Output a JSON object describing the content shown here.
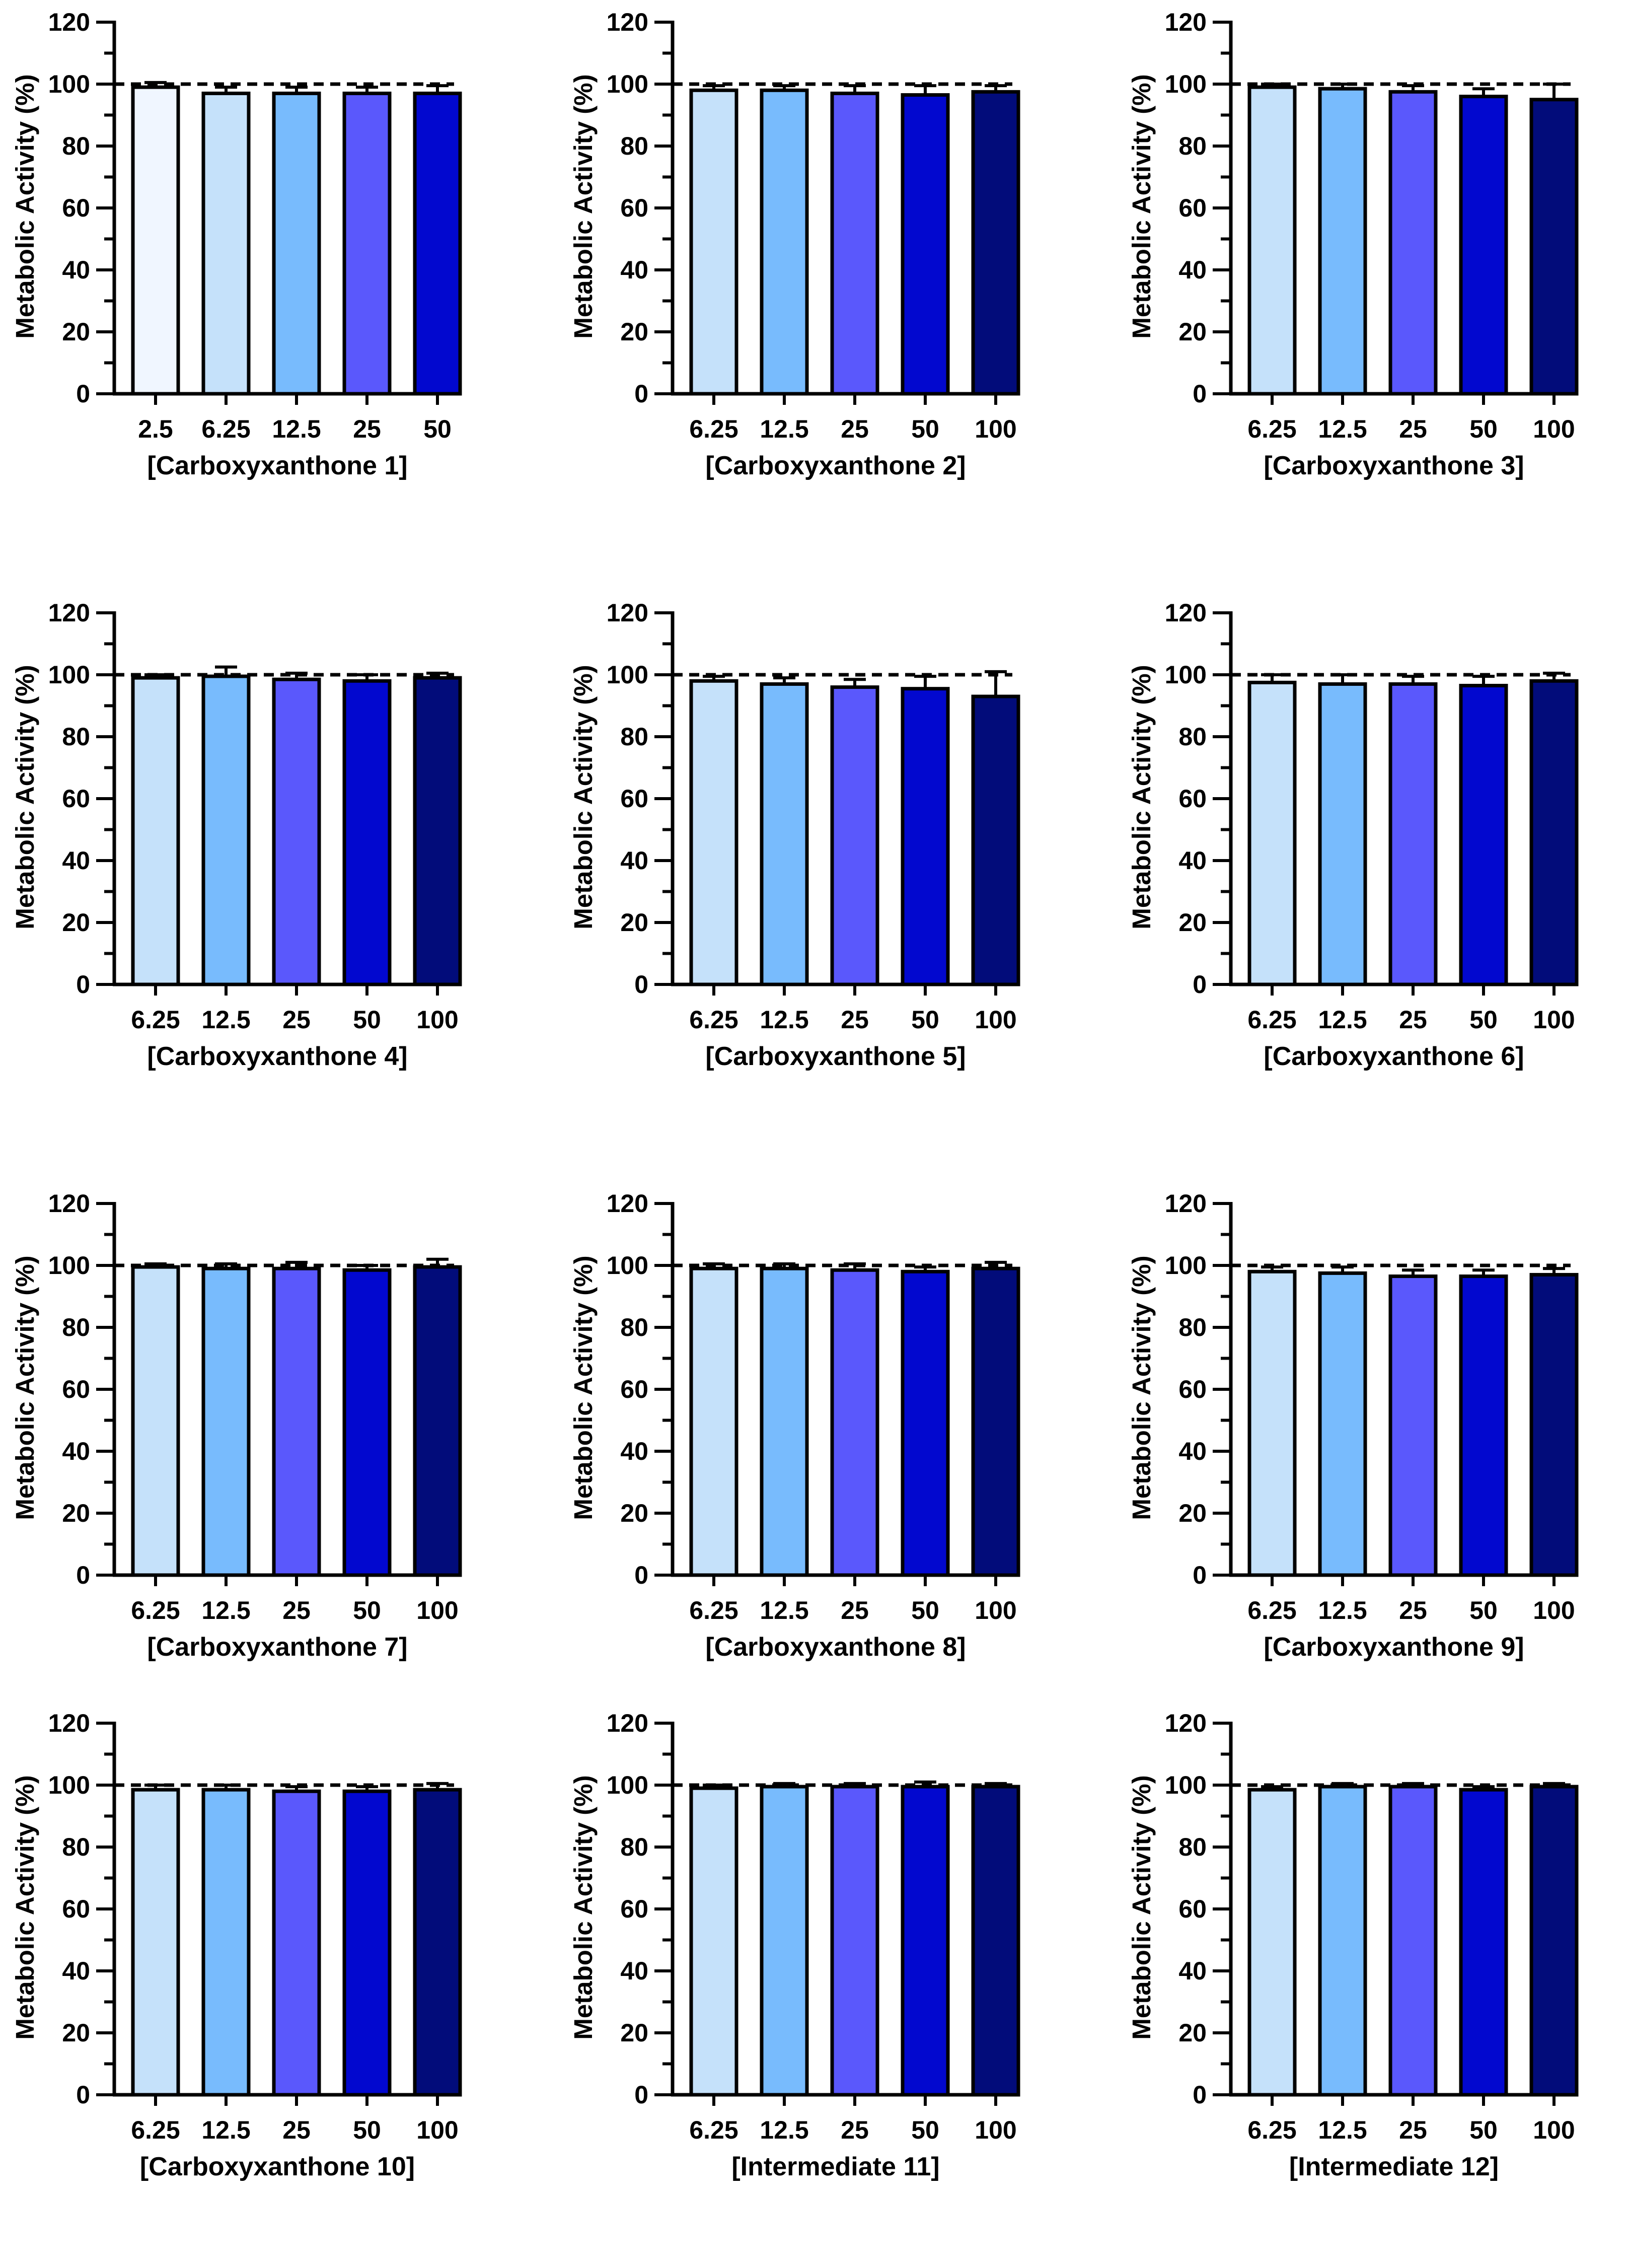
{
  "colors": [
    "#f0f6ff",
    "#c5e1fa",
    "#78bbfd",
    "#5a58fc",
    "#0208cf",
    "#020c7a"
  ],
  "panels": [
    {
      "chart_data": {
        "type": "bar",
        "title": "",
        "xlabel": "[Carboxyxanthone 1]",
        "ylabel": "Metabolic Activity (%)",
        "ylim": [
          0,
          120
        ],
        "yticks": [
          "0",
          "20",
          "40",
          "60",
          "80",
          "100",
          "120"
        ],
        "reference_line": 100,
        "categories": [
          "2.5",
          "6.25",
          "12.5",
          "25",
          "50"
        ],
        "values": [
          99,
          97,
          97,
          97,
          97
        ],
        "errors": [
          1.5,
          2,
          2,
          2,
          2.5
        ],
        "bar_colors": [
          "#f0f6ff",
          "#c5e1fa",
          "#78bbfd",
          "#5a58fc",
          "#0208cf"
        ]
      }
    },
    {
      "chart_data": {
        "type": "bar",
        "title": "",
        "xlabel": "[Carboxyxanthone 2]",
        "ylabel": "Metabolic Activity (%)",
        "ylim": [
          0,
          120
        ],
        "yticks": [
          "0",
          "20",
          "40",
          "60",
          "80",
          "100",
          "120"
        ],
        "reference_line": 100,
        "categories": [
          "6.25",
          "12.5",
          "25",
          "50",
          "100"
        ],
        "values": [
          98,
          98,
          97,
          96.5,
          97.5
        ],
        "errors": [
          1.5,
          1.5,
          2.5,
          3,
          2
        ],
        "bar_colors": [
          "#c5e1fa",
          "#78bbfd",
          "#5a58fc",
          "#0208cf",
          "#020c7a"
        ]
      }
    },
    {
      "chart_data": {
        "type": "bar",
        "title": "",
        "xlabel": "[Carboxyxanthone 3]",
        "ylabel": "Metabolic Activity (%)",
        "ylim": [
          0,
          120
        ],
        "yticks": [
          "0",
          "20",
          "40",
          "60",
          "80",
          "100",
          "120"
        ],
        "reference_line": 100,
        "categories": [
          "6.25",
          "12.5",
          "25",
          "50",
          "100"
        ],
        "values": [
          99,
          98.5,
          97.5,
          96,
          95
        ],
        "errors": [
          1,
          1.5,
          2,
          2.5,
          5
        ],
        "bar_colors": [
          "#c5e1fa",
          "#78bbfd",
          "#5a58fc",
          "#0208cf",
          "#020c7a"
        ]
      }
    },
    {
      "chart_data": {
        "type": "bar",
        "title": "",
        "xlabel": "[Carboxyxanthone 4]",
        "ylabel": "Metabolic Activity (%)",
        "ylim": [
          0,
          120
        ],
        "yticks": [
          "0",
          "20",
          "40",
          "60",
          "80",
          "100",
          "120"
        ],
        "reference_line": 100,
        "categories": [
          "6.25",
          "12.5",
          "25",
          "50",
          "100"
        ],
        "values": [
          99,
          99.5,
          98.5,
          98,
          99
        ],
        "errors": [
          1,
          3,
          2,
          2,
          1.5
        ],
        "bar_colors": [
          "#c5e1fa",
          "#78bbfd",
          "#5a58fc",
          "#0208cf",
          "#020c7a"
        ]
      }
    },
    {
      "chart_data": {
        "type": "bar",
        "title": "",
        "xlabel": "[Carboxyxanthone 5]",
        "ylabel": "Metabolic Activity (%)",
        "ylim": [
          0,
          120
        ],
        "yticks": [
          "0",
          "20",
          "40",
          "60",
          "80",
          "100",
          "120"
        ],
        "reference_line": 100,
        "categories": [
          "6.25",
          "12.5",
          "25",
          "50",
          "100"
        ],
        "values": [
          98,
          97,
          96,
          95.5,
          93
        ],
        "errors": [
          1.5,
          2,
          2.5,
          4,
          8
        ],
        "bar_colors": [
          "#c5e1fa",
          "#78bbfd",
          "#5a58fc",
          "#0208cf",
          "#020c7a"
        ]
      }
    },
    {
      "chart_data": {
        "type": "bar",
        "title": "",
        "xlabel": "[Carboxyxanthone 6]",
        "ylabel": "Metabolic Activity (%)",
        "ylim": [
          0,
          120
        ],
        "yticks": [
          "0",
          "20",
          "40",
          "60",
          "80",
          "100",
          "120"
        ],
        "reference_line": 100,
        "categories": [
          "6.25",
          "12.5",
          "25",
          "50",
          "100"
        ],
        "values": [
          97.5,
          97,
          97,
          96.5,
          98
        ],
        "errors": [
          2.5,
          3,
          2.5,
          3,
          2.5
        ],
        "bar_colors": [
          "#c5e1fa",
          "#78bbfd",
          "#5a58fc",
          "#0208cf",
          "#020c7a"
        ]
      }
    },
    {
      "chart_data": {
        "type": "bar",
        "title": "",
        "xlabel": "[Carboxyxanthone 7]",
        "ylabel": "Metabolic Activity (%)",
        "ylim": [
          0,
          120
        ],
        "yticks": [
          "0",
          "20",
          "40",
          "60",
          "80",
          "100",
          "120"
        ],
        "reference_line": 100,
        "categories": [
          "6.25",
          "12.5",
          "25",
          "50",
          "100"
        ],
        "values": [
          99.5,
          99,
          99,
          98.5,
          99.5
        ],
        "errors": [
          1,
          1.5,
          2,
          1.5,
          2.5
        ],
        "bar_colors": [
          "#c5e1fa",
          "#78bbfd",
          "#5a58fc",
          "#0208cf",
          "#020c7a"
        ]
      }
    },
    {
      "chart_data": {
        "type": "bar",
        "title": "",
        "xlabel": "[Carboxyxanthone 8]",
        "ylabel": "Metabolic Activity (%)",
        "ylim": [
          0,
          120
        ],
        "yticks": [
          "0",
          "20",
          "40",
          "60",
          "80",
          "100",
          "120"
        ],
        "reference_line": 100,
        "categories": [
          "6.25",
          "12.5",
          "25",
          "50",
          "100"
        ],
        "values": [
          99,
          99,
          98.5,
          98,
          99
        ],
        "errors": [
          1.5,
          1.5,
          2,
          1.5,
          2
        ],
        "bar_colors": [
          "#c5e1fa",
          "#78bbfd",
          "#5a58fc",
          "#0208cf",
          "#020c7a"
        ]
      }
    },
    {
      "chart_data": {
        "type": "bar",
        "title": "",
        "xlabel": "[Carboxyxanthone 9]",
        "ylabel": "Metabolic Activity (%)",
        "ylim": [
          0,
          120
        ],
        "yticks": [
          "0",
          "20",
          "40",
          "60",
          "80",
          "100",
          "120"
        ],
        "reference_line": 100,
        "categories": [
          "6.25",
          "12.5",
          "25",
          "50",
          "100"
        ],
        "values": [
          98,
          97.5,
          96.5,
          96.5,
          97
        ],
        "errors": [
          1.5,
          2,
          2,
          2,
          2
        ],
        "bar_colors": [
          "#c5e1fa",
          "#78bbfd",
          "#5a58fc",
          "#0208cf",
          "#020c7a"
        ]
      }
    },
    {
      "chart_data": {
        "type": "bar",
        "title": "",
        "xlabel": "[Carboxyxanthone 10]",
        "ylabel": "Metabolic Activity (%)",
        "ylim": [
          0,
          120
        ],
        "yticks": [
          "0",
          "20",
          "40",
          "60",
          "80",
          "100",
          "120"
        ],
        "reference_line": 100,
        "categories": [
          "6.25",
          "12.5",
          "25",
          "50",
          "100"
        ],
        "values": [
          98.5,
          98.5,
          98,
          98,
          98.5
        ],
        "errors": [
          1.5,
          1.5,
          1.5,
          1.5,
          2
        ],
        "bar_colors": [
          "#c5e1fa",
          "#78bbfd",
          "#5a58fc",
          "#0208cf",
          "#020c7a"
        ]
      }
    },
    {
      "chart_data": {
        "type": "bar",
        "title": "",
        "xlabel": "[Intermediate 11]",
        "ylabel": "Metabolic Activity (%)",
        "ylim": [
          0,
          120
        ],
        "yticks": [
          "0",
          "20",
          "40",
          "60",
          "80",
          "100",
          "120"
        ],
        "reference_line": 100,
        "categories": [
          "6.25",
          "12.5",
          "25",
          "50",
          "100"
        ],
        "values": [
          99,
          99.5,
          99.5,
          99.5,
          99.5
        ],
        "errors": [
          1,
          1,
          1,
          1.5,
          1
        ],
        "bar_colors": [
          "#c5e1fa",
          "#78bbfd",
          "#5a58fc",
          "#0208cf",
          "#020c7a"
        ]
      }
    },
    {
      "chart_data": {
        "type": "bar",
        "title": "",
        "xlabel": "[Intermediate 12]",
        "ylabel": "Metabolic Activity (%)",
        "ylim": [
          0,
          120
        ],
        "yticks": [
          "0",
          "20",
          "40",
          "60",
          "80",
          "100",
          "120"
        ],
        "reference_line": 100,
        "categories": [
          "6.25",
          "12.5",
          "25",
          "50",
          "100"
        ],
        "values": [
          98.5,
          99.5,
          99.5,
          98.5,
          99.5
        ],
        "errors": [
          1,
          1,
          1,
          1,
          1
        ],
        "bar_colors": [
          "#c5e1fa",
          "#78bbfd",
          "#5a58fc",
          "#0208cf",
          "#020c7a"
        ]
      }
    }
  ]
}
